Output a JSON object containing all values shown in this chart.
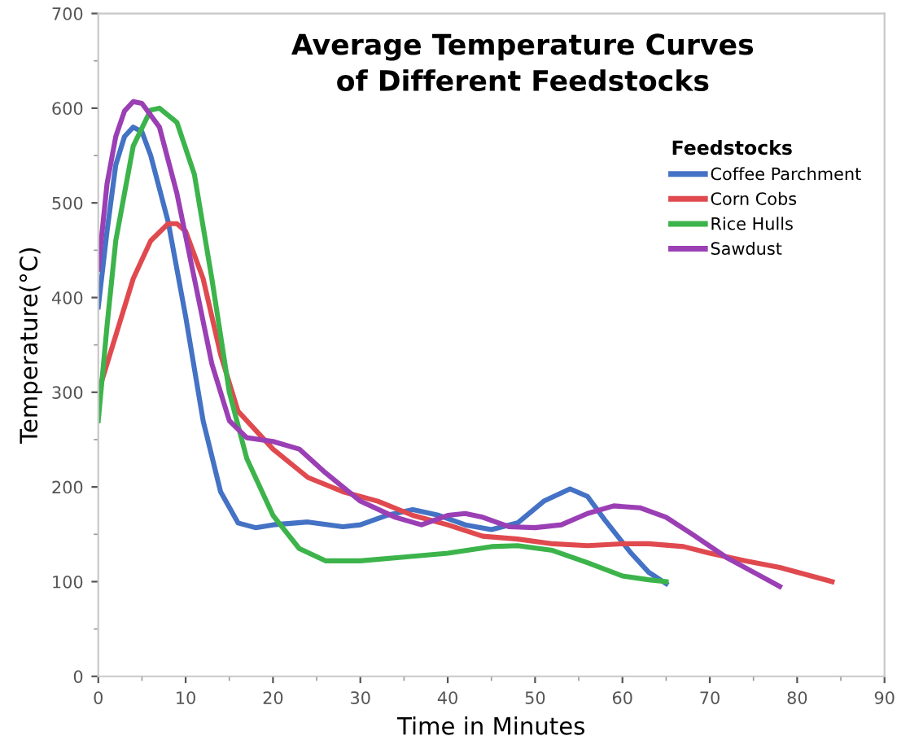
{
  "chart_data": {
    "type": "line",
    "title": "Average Temperature Curves\nof Different Feedstocks",
    "xlabel": "Time in Minutes",
    "ylabel": "Temperature(°C)",
    "legend_title": "Feedstocks",
    "legend": "right",
    "grid": false,
    "marker": "none",
    "line_style": "solid",
    "xlim": [
      0,
      90
    ],
    "ylim": [
      0,
      700
    ],
    "xticks": [
      0,
      10,
      20,
      30,
      40,
      50,
      60,
      70,
      80,
      90
    ],
    "yticks": [
      0,
      100,
      200,
      300,
      400,
      500,
      600,
      700
    ],
    "series": [
      {
        "name": "Coffee Parchment",
        "color": "#4472c4",
        "x": [
          0,
          1,
          2,
          3,
          4,
          5,
          6,
          8,
          10,
          12,
          14,
          16,
          18,
          20,
          24,
          28,
          30,
          33,
          36,
          39,
          42,
          45,
          48,
          51,
          54,
          56,
          58,
          61,
          63,
          65
        ],
        "values": [
          390,
          470,
          540,
          570,
          580,
          575,
          550,
          480,
          380,
          270,
          195,
          162,
          157,
          160,
          163,
          158,
          160,
          170,
          176,
          170,
          160,
          155,
          162,
          185,
          198,
          190,
          165,
          130,
          110,
          98
        ]
      },
      {
        "name": "Corn Cobs",
        "color": "#e04a4f",
        "x": [
          0,
          2,
          4,
          6,
          8,
          9,
          10,
          12,
          14,
          16,
          18,
          20,
          24,
          28,
          32,
          36,
          40,
          44,
          48,
          52,
          56,
          60,
          63,
          67,
          70,
          74,
          78,
          84
        ],
        "values": [
          300,
          360,
          420,
          460,
          478,
          478,
          470,
          420,
          340,
          280,
          260,
          240,
          210,
          195,
          185,
          170,
          160,
          148,
          145,
          140,
          138,
          140,
          140,
          137,
          130,
          122,
          115,
          100
        ]
      },
      {
        "name": "Rice Hulls",
        "color": "#3cb44b",
        "x": [
          0,
          1,
          2,
          4,
          6,
          7,
          9,
          11,
          13,
          15,
          17,
          20,
          23,
          26,
          30,
          35,
          40,
          45,
          48,
          52,
          56,
          60,
          63,
          65
        ],
        "values": [
          270,
          370,
          460,
          560,
          598,
          600,
          585,
          530,
          420,
          300,
          230,
          170,
          135,
          122,
          122,
          126,
          130,
          137,
          138,
          133,
          120,
          106,
          102,
          100
        ]
      },
      {
        "name": "Sawdust",
        "color": "#9b3fb5",
        "x": [
          0,
          1,
          2,
          3,
          4,
          5,
          7,
          9,
          11,
          13,
          15,
          17,
          20,
          23,
          26,
          30,
          34,
          37,
          40,
          42,
          44,
          47,
          50,
          53,
          56,
          59,
          62,
          65,
          68,
          72,
          76,
          78
        ],
        "values": [
          430,
          520,
          570,
          597,
          607,
          605,
          580,
          510,
          420,
          330,
          270,
          252,
          248,
          240,
          215,
          185,
          168,
          160,
          170,
          172,
          168,
          158,
          157,
          160,
          172,
          180,
          178,
          168,
          150,
          125,
          105,
          95
        ]
      }
    ]
  }
}
